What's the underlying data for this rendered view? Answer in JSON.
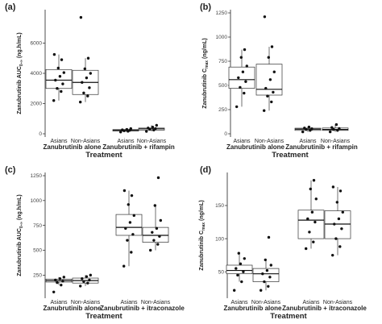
{
  "chart_data": [
    {
      "panel": "(a)",
      "type": "box",
      "ylabel": "Zanubrutinib AUC",
      "ylabel_sub": "0-∞",
      "ylabel_unit": "(ng.h/mL)",
      "xlabel": "Treatment",
      "ylim": [
        0,
        8000
      ],
      "yticks": [
        0,
        2000,
        4000,
        6000
      ],
      "categories": [
        "Asians",
        "Non-Asians",
        "Asians",
        "Non-Asians"
      ],
      "treatments": [
        "Zanubrutinib alone",
        "Zanubrutinib + rifampin"
      ],
      "boxes": [
        {
          "q1": 3000,
          "median": 3550,
          "q3": 4250,
          "wlow": 2200,
          "whigh": 5250,
          "points": [
            2200,
            2800,
            3000,
            3300,
            3550,
            3800,
            4050,
            4350,
            4900,
            5250
          ]
        },
        {
          "q1": 2600,
          "median": 3400,
          "q3": 4200,
          "wlow": 2100,
          "whigh": 5000,
          "points": [
            2100,
            2500,
            2700,
            3050,
            3400,
            3700,
            4000,
            4300,
            5000,
            7700
          ]
        },
        {
          "q1": 180,
          "median": 230,
          "q3": 280,
          "wlow": 120,
          "whigh": 340,
          "points": [
            120,
            170,
            200,
            230,
            260,
            290,
            340
          ]
        },
        {
          "q1": 240,
          "median": 330,
          "q3": 380,
          "wlow": 160,
          "whigh": 560,
          "points": [
            160,
            250,
            300,
            340,
            380,
            440,
            560
          ]
        }
      ]
    },
    {
      "panel": "(b)",
      "type": "box",
      "ylabel": "Zanubrutinib C",
      "ylabel_sub": "max",
      "ylabel_unit": "(ng/mL)",
      "xlabel": "Treatment",
      "ylim": [
        0,
        1250
      ],
      "yticks": [
        0,
        250,
        500,
        750,
        1000,
        1250
      ],
      "categories": [
        "Asians",
        "Non-Asians",
        "Asians",
        "Non-Asians"
      ],
      "treatments": [
        "Zanubrutinib alone",
        "Zanubrutinib + rifampin"
      ],
      "boxes": [
        {
          "q1": 470,
          "median": 560,
          "q3": 690,
          "wlow": 280,
          "whigh": 870,
          "points": [
            280,
            420,
            480,
            540,
            580,
            640,
            700,
            790,
            870
          ]
        },
        {
          "q1": 400,
          "median": 460,
          "q3": 720,
          "wlow": 240,
          "whigh": 900,
          "points": [
            240,
            330,
            390,
            430,
            470,
            560,
            640,
            790,
            900,
            1210
          ]
        },
        {
          "q1": 35,
          "median": 48,
          "q3": 58,
          "wlow": 20,
          "whigh": 70,
          "points": [
            20,
            35,
            45,
            52,
            60,
            70
          ]
        },
        {
          "q1": 35,
          "median": 45,
          "q3": 60,
          "wlow": 20,
          "whigh": 95,
          "points": [
            20,
            35,
            45,
            55,
            65,
            95
          ]
        }
      ]
    },
    {
      "panel": "(c)",
      "type": "box",
      "ylabel": "Zanubrutinib AUC",
      "ylabel_sub": "0-∞",
      "ylabel_unit": "(ng.h/mL)",
      "xlabel": "Treatment",
      "ylim": [
        50,
        1250
      ],
      "yticks": [
        250,
        500,
        750,
        1000,
        1250
      ],
      "categories": [
        "Asians",
        "Non-Asians",
        "Asians",
        "Non-Asians"
      ],
      "treatments": [
        "Zanubrutinib alone",
        "Zanubrutinib + itraconazole"
      ],
      "boxes": [
        {
          "q1": 180,
          "median": 195,
          "q3": 210,
          "wlow": 150,
          "whigh": 230,
          "points": [
            80,
            150,
            175,
            190,
            200,
            215,
            230
          ]
        },
        {
          "q1": 170,
          "median": 195,
          "q3": 220,
          "wlow": 140,
          "whigh": 250,
          "points": [
            140,
            170,
            185,
            200,
            215,
            235,
            250
          ]
        },
        {
          "q1": 650,
          "median": 730,
          "q3": 860,
          "wlow": 340,
          "whigh": 1100,
          "points": [
            340,
            480,
            600,
            660,
            720,
            780,
            850,
            960,
            1050,
            1100
          ]
        },
        {
          "q1": 580,
          "median": 650,
          "q3": 730,
          "wlow": 500,
          "whigh": 950,
          "points": [
            500,
            560,
            600,
            640,
            680,
            720,
            800,
            950,
            1230
          ]
        }
      ]
    },
    {
      "panel": "(d)",
      "type": "box",
      "ylabel": "Zanubrutinib C",
      "ylabel_sub": "max",
      "ylabel_unit": "(ng/mL)",
      "xlabel": "Treatment",
      "ylim": [
        15,
        195
      ],
      "yticks": [
        50,
        100,
        150
      ],
      "categories": [
        "Asians",
        "Non-Asians",
        "Asians",
        "Non-Asians"
      ],
      "treatments": [
        "Zanubrutinib alone",
        "Zanubrutinib + itraconazole"
      ],
      "boxes": [
        {
          "q1": 47,
          "median": 52,
          "q3": 60,
          "wlow": 35,
          "whigh": 78,
          "points": [
            22,
            35,
            45,
            50,
            55,
            62,
            70,
            78
          ]
        },
        {
          "q1": 35,
          "median": 47,
          "q3": 55,
          "wlow": 22,
          "whigh": 68,
          "points": [
            22,
            28,
            35,
            42,
            47,
            52,
            60,
            68,
            102
          ]
        },
        {
          "q1": 100,
          "median": 128,
          "q3": 143,
          "wlow": 85,
          "whigh": 188,
          "points": [
            85,
            95,
            110,
            125,
            130,
            140,
            160,
            175,
            188
          ]
        },
        {
          "q1": 100,
          "median": 122,
          "q3": 142,
          "wlow": 75,
          "whigh": 178,
          "points": [
            75,
            88,
            100,
            115,
            122,
            130,
            140,
            155,
            172,
            178
          ]
        }
      ]
    }
  ]
}
